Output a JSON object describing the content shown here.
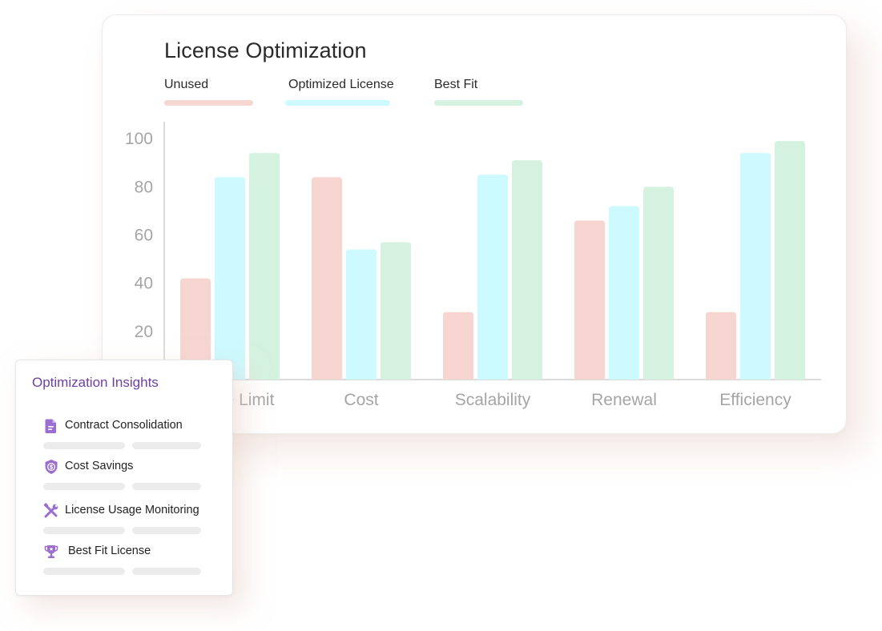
{
  "chart_data": {
    "type": "bar",
    "title": "License Optimization",
    "categories": [
      "Usage Limit",
      "Cost",
      "Scalability",
      "Renewal",
      "Efficiency"
    ],
    "series": [
      {
        "name": "Unused",
        "color": "#f7d6d2",
        "values": [
          42,
          84,
          28,
          66,
          28
        ]
      },
      {
        "name": "Optimized License",
        "color": "#ccfaff",
        "values": [
          84,
          54,
          85,
          72,
          94
        ]
      },
      {
        "name": "Best Fit",
        "color": "#d5f2e0",
        "values": [
          94,
          57,
          91,
          80,
          99
        ]
      }
    ],
    "yticks": [
      20,
      40,
      60,
      80,
      100
    ],
    "ylim": [
      0,
      107
    ],
    "xlabel": "",
    "ylabel": "",
    "legend": "top-left",
    "grid": false
  },
  "insights": {
    "title": "Optimization Insights",
    "items": [
      {
        "label": "Contract Consolidation",
        "icon": "document-icon"
      },
      {
        "label": "Cost Savings",
        "icon": "dollar-shield-icon"
      },
      {
        "label": "License Usage Monitoring",
        "icon": "tools-icon"
      },
      {
        "label": "Best Fit License",
        "icon": "trophy-icon"
      }
    ]
  },
  "colors": {
    "accent": "#6f3fa0",
    "icon": "#9a6fd0",
    "axis": "#cfcfcf",
    "tick_text": "#a5a5a5"
  }
}
